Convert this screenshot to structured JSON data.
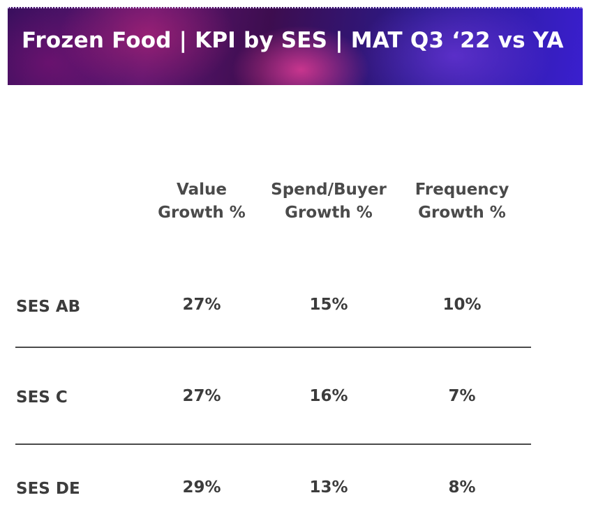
{
  "header": {
    "title": "Frozen Food | KPI by SES | MAT Q3 ‘22 vs YA"
  },
  "chart_data": {
    "type": "table",
    "columns": [
      {
        "line1": "Value",
        "line2": "Growth %"
      },
      {
        "line1": "Spend/Buyer",
        "line2": "Growth %"
      },
      {
        "line1": "Frequency",
        "line2": "Growth %"
      }
    ],
    "rows": [
      {
        "label": "SES AB",
        "values": [
          "27%",
          "15%",
          "10%"
        ]
      },
      {
        "label": "SES C",
        "values": [
          "27%",
          "16%",
          "7%"
        ]
      },
      {
        "label": "SES DE",
        "values": [
          "29%",
          "13%",
          "8%"
        ]
      }
    ]
  },
  "colors": {
    "header_gradient_start": "#3a0f5e",
    "header_gradient_end": "#3a1fcf",
    "text": "#3c3c3c",
    "divider": "#4a4a4a"
  }
}
